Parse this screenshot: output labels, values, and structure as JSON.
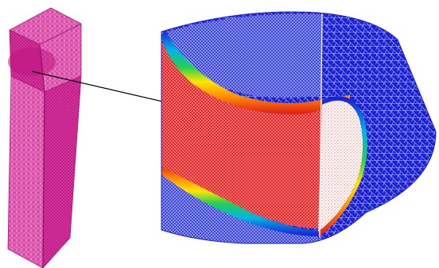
{
  "figure": {
    "description_visible_text": "",
    "colors": {
      "column_mesh": "#d6209c",
      "column_mesh_dark": "#a0187a",
      "section_outer": "#1a1ad6",
      "section_inner": "#e01a1a",
      "section_cut_face": "#ffffff",
      "pointer_arrow": "#000000"
    },
    "gradient_band": [
      "#1a1ad6",
      "#00b4e6",
      "#22d050",
      "#ffe600",
      "#ff8a00",
      "#e01a1a"
    ]
  }
}
